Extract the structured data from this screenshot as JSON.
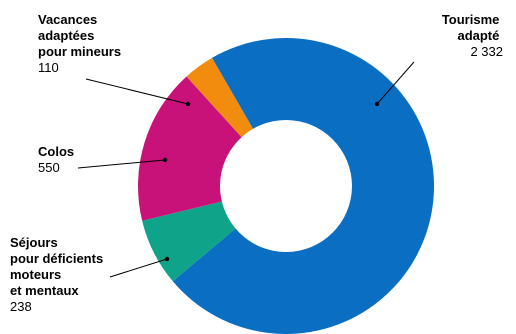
{
  "chart_data": {
    "type": "pie",
    "donut": true,
    "start_angle_deg": -30,
    "direction": "clockwise",
    "slices": [
      {
        "label": "Tourisme adapté",
        "label_lines": [
          "Tourisme",
          "adapté"
        ],
        "value": 2332,
        "value_label": "2 332",
        "color": "#0a6fc2"
      },
      {
        "label": "Séjours pour déficients moteurs et mentaux",
        "label_lines": [
          "Séjours",
          "pour déficients",
          "moteurs",
          "et mentaux"
        ],
        "value": 238,
        "value_label": "238",
        "color": "#0fa38a"
      },
      {
        "label": "Colos",
        "label_lines": [
          "Colos"
        ],
        "value": 550,
        "value_label": "550",
        "color": "#c8127a"
      },
      {
        "label": "Vacances adaptées pour mineurs",
        "label_lines": [
          "Vacances",
          "adaptées",
          "pour mineurs"
        ],
        "value": 110,
        "value_label": "110",
        "color": "#f28c0f"
      }
    ]
  }
}
